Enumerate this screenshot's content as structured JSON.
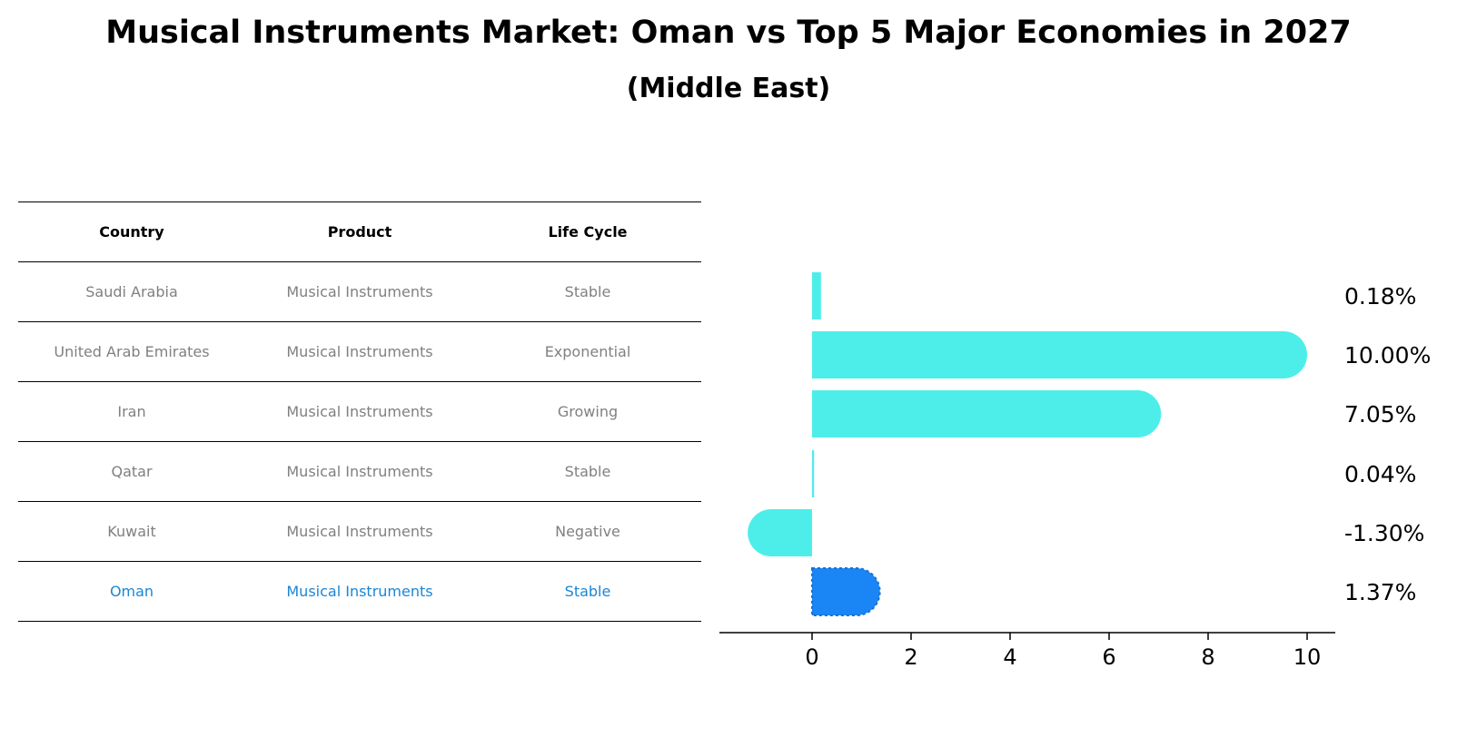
{
  "title": "Musical Instruments Market: Oman vs Top 5 Major Economies in 2027",
  "subtitle": "(Middle East)",
  "table": {
    "headers": [
      "Country",
      "Product",
      "Life Cycle"
    ],
    "rows": [
      [
        "Saudi Arabia",
        "Musical Instruments",
        "Stable"
      ],
      [
        "United Arab Emirates",
        "Musical Instruments",
        "Exponential"
      ],
      [
        "Iran",
        "Musical Instruments",
        "Growing"
      ],
      [
        "Qatar",
        "Musical Instruments",
        "Stable"
      ],
      [
        "Kuwait",
        "Musical Instruments",
        "Negative"
      ],
      [
        "Oman",
        "Musical Instruments",
        "Stable"
      ]
    ],
    "highlight_row": 5,
    "highlight_color": "#1a86d6"
  },
  "chart_data": {
    "type": "bar",
    "orientation": "horizontal",
    "categories": [
      "Saudi Arabia",
      "United Arab Emirates",
      "Iran",
      "Qatar",
      "Kuwait",
      "Oman"
    ],
    "values": [
      0.18,
      10.0,
      7.05,
      0.04,
      -1.3,
      1.37
    ],
    "value_labels": [
      "0.18%",
      "10.00%",
      "7.05%",
      "0.04%",
      "-1.30%",
      "1.37%"
    ],
    "xlim": [
      -1.9,
      10.6
    ],
    "xticks": [
      0,
      2,
      4,
      6,
      8,
      10
    ],
    "colors": {
      "default": "#4deeea",
      "highlight": "#1a86f5"
    },
    "highlight_index": 5
  }
}
